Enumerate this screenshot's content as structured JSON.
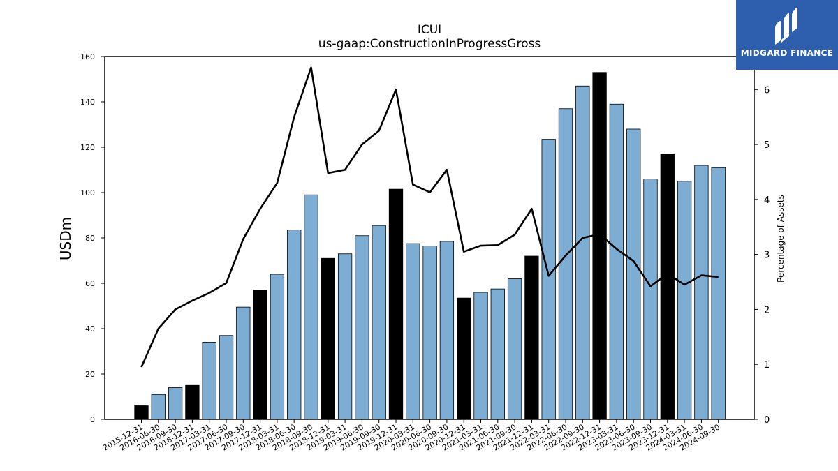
{
  "chart_data": {
    "type": "bar+line",
    "title": "ICUI",
    "subtitle": "us-gaap:ConstructionInProgressGross",
    "ylabel": "USDm",
    "y2label": "Percentage of Assets",
    "ylim": [
      0,
      160
    ],
    "y2lim": [
      0,
      6.6
    ],
    "yticks": [
      0,
      20,
      40,
      60,
      80,
      100,
      120,
      140,
      160
    ],
    "y2ticks": [
      0,
      1,
      2,
      3,
      4,
      5,
      6
    ],
    "categories": [
      "2015-12-31",
      "2016-06-30",
      "2016-09-30",
      "2016-12-31",
      "2017-03-31",
      "2017-06-30",
      "2017-09-30",
      "2017-12-31",
      "2018-03-31",
      "2018-06-30",
      "2018-09-30",
      "2018-12-31",
      "2019-03-31",
      "2019-06-30",
      "2019-09-30",
      "2019-12-31",
      "2020-03-31",
      "2020-06-30",
      "2020-09-30",
      "2020-12-31",
      "2021-03-31",
      "2021-06-30",
      "2021-09-30",
      "2021-12-31",
      "2022-03-31",
      "2022-06-30",
      "2022-09-30",
      "2022-12-31",
      "2023-03-31",
      "2023-06-30",
      "2023-09-30",
      "2023-12-31",
      "2024-03-31",
      "2024-06-30",
      "2024-09-30"
    ],
    "series": [
      {
        "type": "bar",
        "values": [
          6,
          11,
          14,
          15,
          34,
          37,
          49.5,
          57,
          64,
          83.5,
          99,
          71,
          73,
          81,
          85.5,
          101.5,
          77.5,
          76.5,
          78.5,
          53.5,
          56,
          57.5,
          62,
          72,
          123.5,
          137,
          147,
          153,
          139,
          128,
          106,
          117,
          105,
          112,
          111
        ],
        "highlight": [
          true,
          false,
          false,
          true,
          false,
          false,
          false,
          true,
          false,
          false,
          false,
          true,
          false,
          false,
          false,
          true,
          false,
          false,
          false,
          true,
          false,
          false,
          false,
          true,
          false,
          false,
          false,
          true,
          false,
          false,
          false,
          true,
          false,
          false,
          false
        ],
        "color": "#7eadd4",
        "highlight_color": "#000000"
      },
      {
        "type": "line",
        "axis": "right",
        "values": [
          0.95,
          1.65,
          2.0,
          2.16,
          2.3,
          2.48,
          3.28,
          3.83,
          4.3,
          5.5,
          6.4,
          4.48,
          4.54,
          5.0,
          5.25,
          6.0,
          4.27,
          4.13,
          4.54,
          3.05,
          3.16,
          3.17,
          3.36,
          3.83,
          2.61,
          2.98,
          3.3,
          3.37,
          3.1,
          2.88,
          2.42,
          2.65,
          2.45,
          2.62,
          2.59
        ],
        "color": "#000000"
      }
    ],
    "grid": false
  },
  "logo": {
    "text": "MIDGARD FINANCE",
    "background": "#2d5fae"
  }
}
